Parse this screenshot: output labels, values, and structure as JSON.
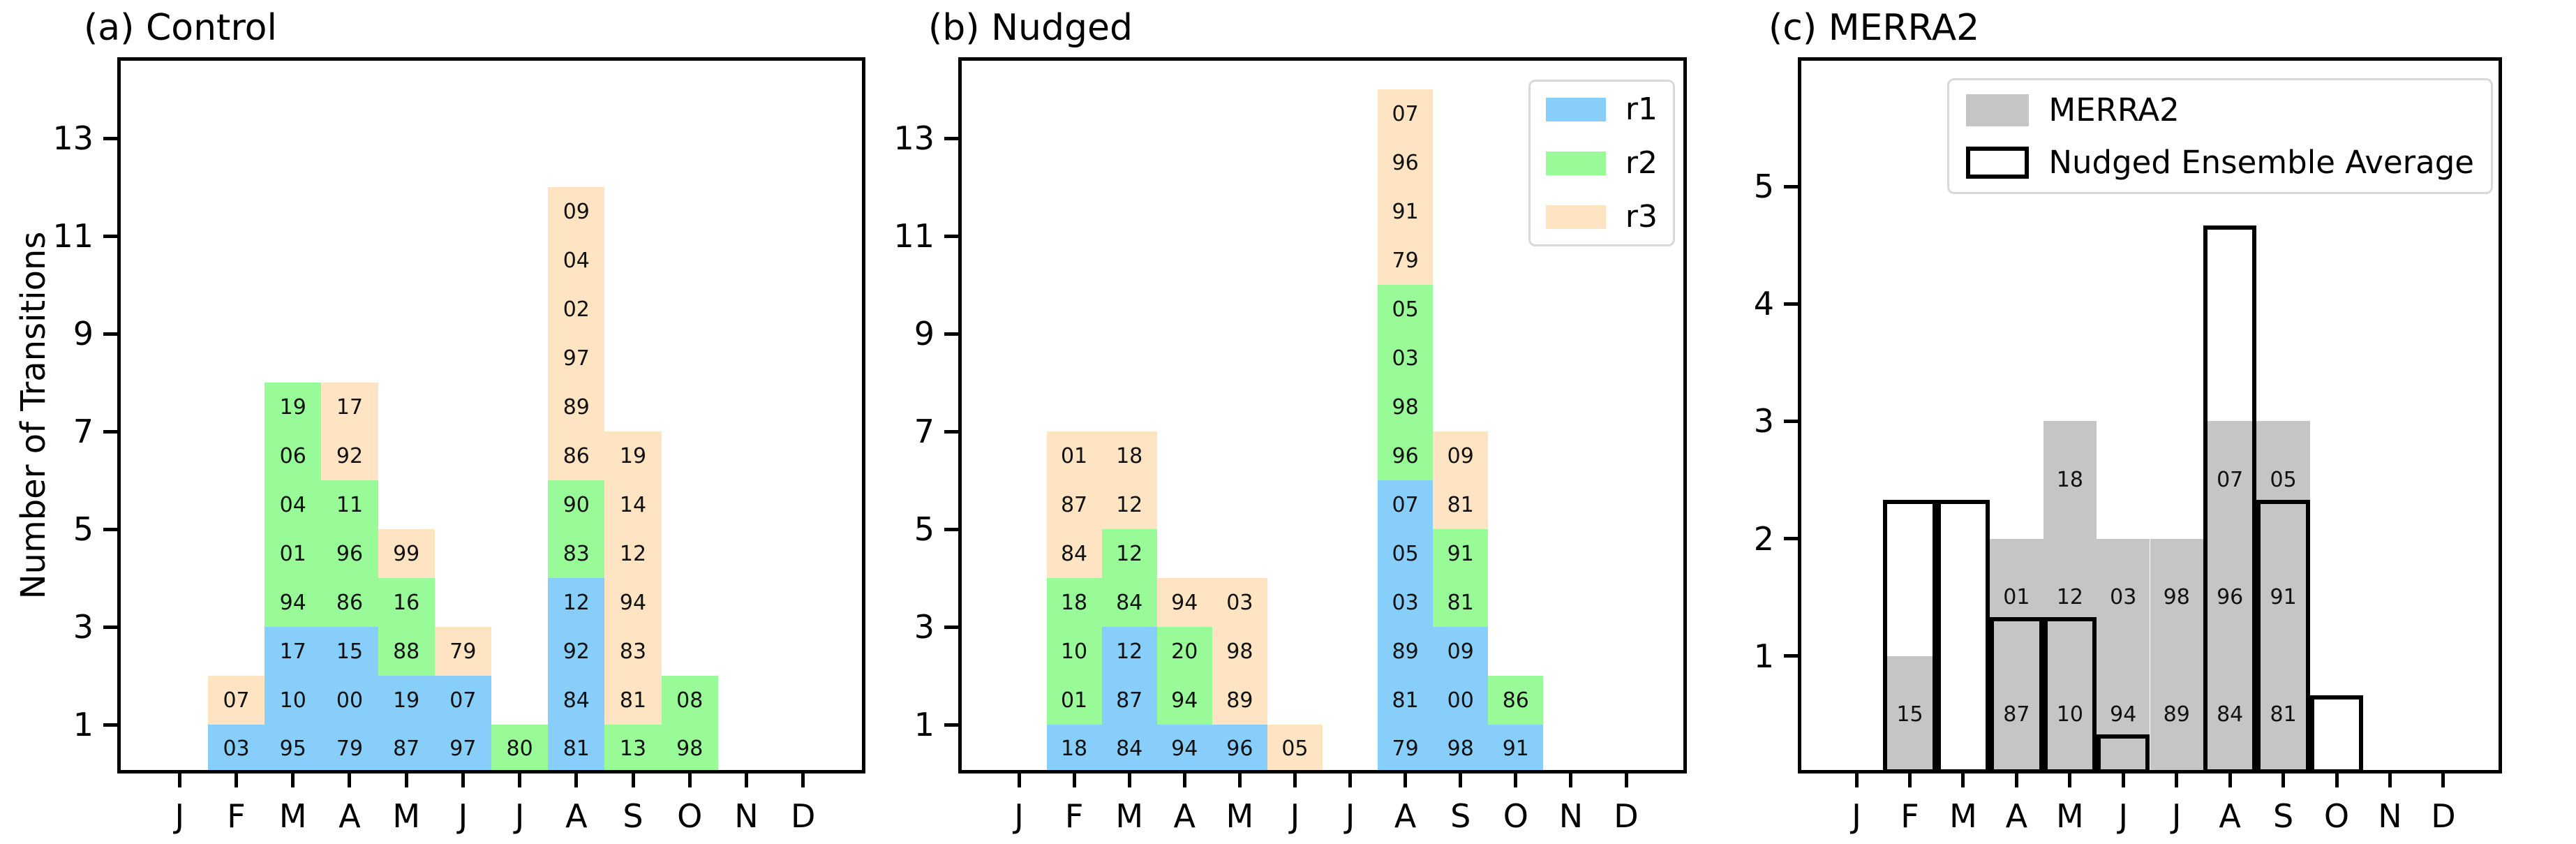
{
  "figure": {
    "background": "#ffffff"
  },
  "colors": {
    "r1": "#87CEFA",
    "r2": "#98FB98",
    "r3": "#FFE4C4",
    "merra2": "#C5C5C5",
    "outline": "#000000"
  },
  "chart_data": [
    {
      "type": "bar",
      "subtype": "stacked",
      "title": "(a) Control",
      "ylabel": "Number of Transitions",
      "xlabel": "",
      "categories": [
        "J",
        "F",
        "M",
        "A",
        "M",
        "J",
        "J",
        "A",
        "S",
        "O",
        "N",
        "D"
      ],
      "yticks": [
        1,
        3,
        5,
        7,
        9,
        11,
        13
      ],
      "ylim": [
        0,
        14.66
      ],
      "grid": false,
      "series_names": [
        "r1",
        "r2",
        "r3"
      ],
      "totals": [
        0,
        2,
        8,
        8,
        5,
        3,
        1,
        12,
        7,
        2,
        0,
        0
      ],
      "stacks": [
        [],
        [
          [
            "r1",
            "03"
          ],
          [
            "r3",
            "07"
          ]
        ],
        [
          [
            "r1",
            "95"
          ],
          [
            "r1",
            "10"
          ],
          [
            "r1",
            "17"
          ],
          [
            "r2",
            "94"
          ],
          [
            "r2",
            "01"
          ],
          [
            "r2",
            "04"
          ],
          [
            "r2",
            "06"
          ],
          [
            "r2",
            "19"
          ]
        ],
        [
          [
            "r1",
            "79"
          ],
          [
            "r1",
            "00"
          ],
          [
            "r1",
            "15"
          ],
          [
            "r2",
            "86"
          ],
          [
            "r2",
            "96"
          ],
          [
            "r2",
            "11"
          ],
          [
            "r3",
            "92"
          ],
          [
            "r3",
            "17"
          ]
        ],
        [
          [
            "r1",
            "87"
          ],
          [
            "r1",
            "19"
          ],
          [
            "r2",
            "88"
          ],
          [
            "r2",
            "16"
          ],
          [
            "r3",
            "99"
          ]
        ],
        [
          [
            "r1",
            "97"
          ],
          [
            "r1",
            "07"
          ],
          [
            "r3",
            "79"
          ]
        ],
        [
          [
            "r2",
            "80"
          ]
        ],
        [
          [
            "r1",
            "81"
          ],
          [
            "r1",
            "84"
          ],
          [
            "r1",
            "92"
          ],
          [
            "r1",
            "12"
          ],
          [
            "r2",
            "83"
          ],
          [
            "r2",
            "90"
          ],
          [
            "r3",
            "86"
          ],
          [
            "r3",
            "89"
          ],
          [
            "r3",
            "97"
          ],
          [
            "r3",
            "02"
          ],
          [
            "r3",
            "04"
          ],
          [
            "r3",
            "09"
          ]
        ],
        [
          [
            "r2",
            "13"
          ],
          [
            "r3",
            "81"
          ],
          [
            "r3",
            "83"
          ],
          [
            "r3",
            "94"
          ],
          [
            "r3",
            "12"
          ],
          [
            "r3",
            "14"
          ],
          [
            "r3",
            "19"
          ]
        ],
        [
          [
            "r2",
            "98"
          ],
          [
            "r2",
            "08"
          ]
        ],
        [],
        []
      ],
      "legend": null
    },
    {
      "type": "bar",
      "subtype": "stacked",
      "title": "(b) Nudged",
      "ylabel": "",
      "xlabel": "",
      "categories": [
        "J",
        "F",
        "M",
        "A",
        "M",
        "J",
        "J",
        "A",
        "S",
        "O",
        "N",
        "D"
      ],
      "yticks": [
        1,
        3,
        5,
        7,
        9,
        11,
        13
      ],
      "ylim": [
        0,
        14.66
      ],
      "grid": false,
      "series_names": [
        "r1",
        "r2",
        "r3"
      ],
      "totals": [
        0,
        7,
        7,
        4,
        4,
        1,
        0,
        14,
        7,
        2,
        0,
        0
      ],
      "stacks": [
        [],
        [
          [
            "r1",
            "18"
          ],
          [
            "r2",
            "01"
          ],
          [
            "r2",
            "10"
          ],
          [
            "r2",
            "18"
          ],
          [
            "r3",
            "84"
          ],
          [
            "r3",
            "87"
          ],
          [
            "r3",
            "01"
          ]
        ],
        [
          [
            "r1",
            "84"
          ],
          [
            "r1",
            "87"
          ],
          [
            "r1",
            "12"
          ],
          [
            "r2",
            "84"
          ],
          [
            "r2",
            "12"
          ],
          [
            "r3",
            "12"
          ],
          [
            "r3",
            "18"
          ]
        ],
        [
          [
            "r1",
            "94"
          ],
          [
            "r2",
            "94"
          ],
          [
            "r2",
            "20"
          ],
          [
            "r3",
            "94"
          ]
        ],
        [
          [
            "r1",
            "96"
          ],
          [
            "r3",
            "89"
          ],
          [
            "r3",
            "98"
          ],
          [
            "r3",
            "03"
          ]
        ],
        [
          [
            "r3",
            "05"
          ]
        ],
        [],
        [
          [
            "r1",
            "79"
          ],
          [
            "r1",
            "81"
          ],
          [
            "r1",
            "89"
          ],
          [
            "r1",
            "03"
          ],
          [
            "r1",
            "05"
          ],
          [
            "r1",
            "07"
          ],
          [
            "r2",
            "96"
          ],
          [
            "r2",
            "98"
          ],
          [
            "r2",
            "03"
          ],
          [
            "r2",
            "05"
          ],
          [
            "r3",
            "79"
          ],
          [
            "r3",
            "91"
          ],
          [
            "r3",
            "96"
          ],
          [
            "r3",
            "07"
          ]
        ],
        [
          [
            "r1",
            "98"
          ],
          [
            "r1",
            "00"
          ],
          [
            "r1",
            "09"
          ],
          [
            "r2",
            "81"
          ],
          [
            "r2",
            "91"
          ],
          [
            "r3",
            "81"
          ],
          [
            "r3",
            "09"
          ]
        ],
        [
          [
            "r1",
            "91"
          ],
          [
            "r2",
            "86"
          ]
        ],
        [],
        []
      ],
      "legend": {
        "position": "upper right",
        "items": [
          {
            "label": "r1",
            "swatch": "r1"
          },
          {
            "label": "r2",
            "swatch": "r2"
          },
          {
            "label": "r3",
            "swatch": "r3"
          }
        ]
      }
    },
    {
      "type": "bar",
      "subtype": "overlay",
      "title": "(c) MERRA2",
      "ylabel": "",
      "xlabel": "",
      "categories": [
        "J",
        "F",
        "M",
        "A",
        "M",
        "J",
        "J",
        "A",
        "S",
        "O",
        "N",
        "D"
      ],
      "yticks": [
        1,
        2,
        3,
        4,
        5
      ],
      "ylim": [
        0,
        6.1
      ],
      "grid": false,
      "series": [
        {
          "name": "MERRA2",
          "style": "fill",
          "swatch": "merra2",
          "values": [
            0,
            1,
            0,
            2,
            3,
            2,
            2,
            3,
            3,
            0,
            0,
            0
          ],
          "cell_labels": [
            [],
            [
              "15"
            ],
            [],
            [
              "87",
              "01"
            ],
            [
              "10",
              "12",
              "18"
            ],
            [
              "94",
              "03"
            ],
            [
              "89",
              "98"
            ],
            [
              "84",
              "96",
              "07"
            ],
            [
              "81",
              "91",
              "05"
            ],
            [],
            [],
            []
          ]
        },
        {
          "name": "Nudged Ensemble Average",
          "style": "outline",
          "swatch": "outline",
          "values": [
            0,
            2.333,
            2.333,
            1.333,
            1.333,
            0.333,
            0,
            4.667,
            2.333,
            0.667,
            0,
            0
          ]
        }
      ],
      "legend": {
        "position": "upper right",
        "items": [
          {
            "label": "MERRA2",
            "swatch": "merra2"
          },
          {
            "label": "Nudged Ensemble Average",
            "swatch": "outline"
          }
        ]
      }
    }
  ]
}
